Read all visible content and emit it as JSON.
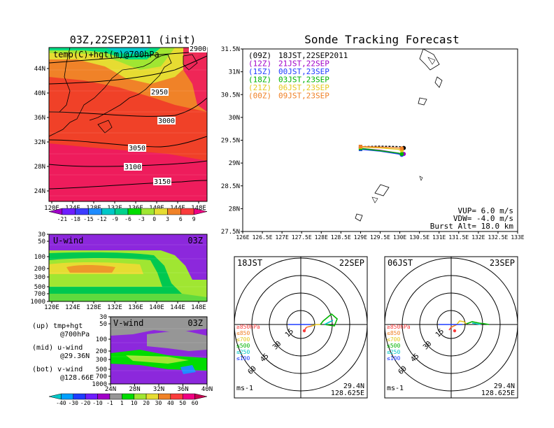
{
  "header": {
    "left_title": "03Z,22SEP2011 (init)",
    "right_title": "Sonde Tracking Forecast"
  },
  "map_panel": {
    "label": "temp(C)+hgt(m)@700hPa",
    "lon_ticks": [
      "120E",
      "124E",
      "128E",
      "132E",
      "136E",
      "140E",
      "144E",
      "148E"
    ],
    "lat_ticks": [
      "44N",
      "40N",
      "36N",
      "32N",
      "28N",
      "24N"
    ],
    "contours": [
      "2900",
      "2950",
      "3000",
      "3050",
      "3100",
      "3150"
    ],
    "colorbar": [
      "-21",
      "-18",
      "-15",
      "-12",
      "-9",
      "-6",
      "-3",
      "0",
      "3",
      "6",
      "9"
    ],
    "colorbar_colors": [
      "#a000c8",
      "#6e1eff",
      "#3c3cff",
      "#1e8cff",
      "#00c8c8",
      "#00d28c",
      "#00dc00",
      "#a0e632",
      "#e6dc32",
      "#f08228",
      "#fa3c3c",
      "#f00082"
    ]
  },
  "u_panel": {
    "label": "U-wind",
    "time": "03Z",
    "y_ticks": [
      "30",
      "50",
      "100",
      "200",
      "300",
      "500",
      "700",
      "1000"
    ],
    "x_ticks": [
      "120E",
      "124E",
      "128E",
      "132E",
      "136E",
      "140E",
      "144E",
      "148E"
    ]
  },
  "v_panel": {
    "label": "V-wind",
    "time": "03Z",
    "y_ticks": [
      "30",
      "50",
      "100",
      "200",
      "300",
      "500",
      "700",
      "1000"
    ],
    "x_ticks": [
      "24N",
      "28N",
      "32N",
      "36N",
      "40N"
    ],
    "colorbar": [
      "-40",
      "-30",
      "-20",
      "-10",
      "-1",
      "1",
      "10",
      "20",
      "30",
      "40",
      "50",
      "60"
    ],
    "colorbar_colors": [
      "#00c8c8",
      "#00a0ff",
      "#1e3cff",
      "#6e1eff",
      "#a000c8",
      "#969696",
      "#00dc00",
      "#a0e632",
      "#e6dc32",
      "#f08228",
      "#fa3c3c",
      "#f00082",
      "#c80050"
    ]
  },
  "side_legend": {
    "up": "(up) tmp+hgt",
    "up_sub": "@700hPa",
    "mid": "(mid) u-wind",
    "mid_sub": "@29.36N",
    "bot": "(bot) v-wind",
    "bot_sub": "@128.66E"
  },
  "track_panel": {
    "lat_ticks": [
      "31.5N",
      "31N",
      "30.5N",
      "30N",
      "29.5N",
      "29N",
      "28.5N",
      "28N",
      "27.5N"
    ],
    "lon_ticks": [
      "126E",
      "126.5E",
      "127E",
      "127.5E",
      "128E",
      "128.5E",
      "129E",
      "129.5E",
      "130E",
      "130.5E",
      "131E",
      "131.5E",
      "132E",
      "132.5E",
      "133E"
    ],
    "legend": [
      {
        "code": "(09Z)",
        "time": "18JST,22SEP2011",
        "color": "#000000"
      },
      {
        "code": "(12Z)",
        "time": "21JST,22SEP",
        "color": "#a000c8"
      },
      {
        "code": "(15Z)",
        "time": "00JST,23SEP",
        "color": "#1e3cff"
      },
      {
        "code": "(18Z)",
        "time": "03JST,23SEP",
        "color": "#00b400"
      },
      {
        "code": "(21Z)",
        "time": "06JST,23SEP",
        "color": "#e6c81e"
      },
      {
        "code": "(00Z)",
        "time": "09JST,23SEP",
        "color": "#f08228"
      }
    ],
    "params": {
      "vup": "VUP=  6.0 m/s",
      "vdw": "VDW= -4.0 m/s",
      "burst": "Burst Alt= 18.0 km"
    }
  },
  "hodo_left": {
    "time": "18JST",
    "date": "22SEP",
    "ring_labels": [
      "15",
      "30",
      "45",
      "60"
    ],
    "levels": [
      "≥850hPa",
      "≤850",
      "≤700",
      "≤500",
      "≤250",
      "≤100"
    ],
    "level_colors": [
      "#fa3c3c",
      "#f08228",
      "#e6c81e",
      "#00b400",
      "#00c8c8",
      "#1e3cff"
    ],
    "units": "ms-1",
    "lat": "29.4N",
    "lon": "128.625E"
  },
  "hodo_right": {
    "time": "06JST",
    "date": "23SEP",
    "ring_labels": [
      "15",
      "30",
      "45",
      "60"
    ],
    "levels": [
      "≥850hPa",
      "≤850",
      "≤700",
      "≤500",
      "≤250",
      "≤100"
    ],
    "level_colors": [
      "#fa3c3c",
      "#f08228",
      "#e6c81e",
      "#00b400",
      "#00c8c8",
      "#1e3cff"
    ],
    "units": "ms-1",
    "lat": "29.4N",
    "lon": "128.625E"
  },
  "chart_data": [
    {
      "type": "heatmap",
      "title": "03Z,22SEP2011 (init)",
      "annotation": "temp(C)+hgt(m)@700hPa",
      "xlim": [
        120,
        150
      ],
      "ylim": [
        22,
        48
      ],
      "contour_levels": [
        2900,
        2950,
        3000,
        3050,
        3100,
        3150
      ],
      "colorbar_values": [
        -21,
        -18,
        -15,
        -12,
        -9,
        -6,
        -3,
        0,
        3,
        6,
        9
      ]
    },
    {
      "type": "heatmap",
      "title": "U-wind",
      "annotation": "03Z",
      "xlim": [
        120,
        150
      ],
      "ylim": [
        1000,
        30
      ]
    },
    {
      "type": "heatmap",
      "title": "V-wind",
      "annotation": "03Z",
      "xlim": [
        24,
        40
      ],
      "ylim": [
        1000,
        30
      ],
      "colorbar_values": [
        -40,
        -30,
        -20,
        -10,
        -1,
        1,
        10,
        20,
        30,
        40,
        50,
        60
      ]
    },
    {
      "type": "line",
      "title": "Sonde Tracking Forecast",
      "xlim": [
        126,
        133
      ],
      "ylim": [
        27.5,
        31.5
      ],
      "series": [
        {
          "name": "(09Z) 18JST,22SEP2011",
          "x": [
            129.0,
            129.5,
            130.0,
            130.1
          ],
          "y": [
            29.36,
            29.37,
            29.36,
            29.33
          ]
        },
        {
          "name": "(12Z) 21JST,22SEP",
          "x": [
            129.0,
            129.5,
            129.95,
            130.1
          ],
          "y": [
            29.32,
            29.28,
            29.22,
            29.2
          ]
        },
        {
          "name": "(15Z) 00JST,23SEP",
          "x": [
            129.0,
            129.5,
            129.95,
            130.05
          ],
          "y": [
            29.3,
            29.26,
            29.2,
            29.18
          ]
        },
        {
          "name": "(18Z) 03JST,23SEP",
          "x": [
            129.0,
            129.5,
            129.95,
            130.05
          ],
          "y": [
            29.32,
            29.27,
            29.22,
            29.2
          ]
        },
        {
          "name": "(21Z) 06JST,23SEP",
          "x": [
            129.0,
            129.5,
            129.95,
            130.05
          ],
          "y": [
            29.35,
            29.33,
            29.3,
            29.28
          ]
        },
        {
          "name": "(00Z) 09JST,23SEP",
          "x": [
            129.0,
            129.5,
            129.95,
            130.05
          ],
          "y": [
            29.36,
            29.35,
            29.33,
            29.32
          ]
        }
      ]
    }
  ]
}
